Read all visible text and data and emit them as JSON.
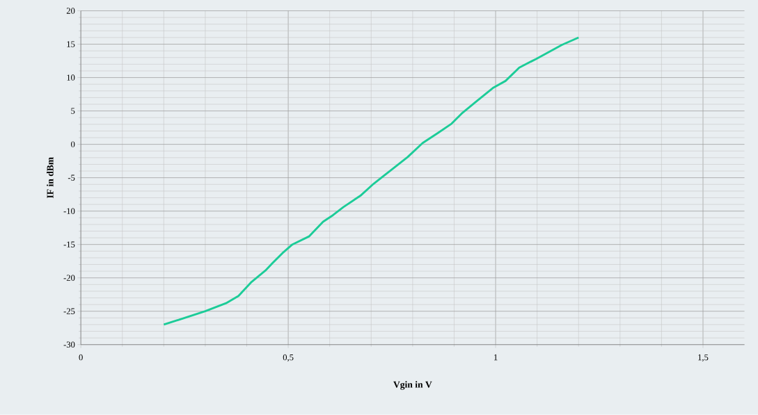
{
  "chart_data": {
    "type": "line",
    "xlabel": "Vgin in V",
    "ylabel": "IF in dBm",
    "xlim": [
      0,
      1.6
    ],
    "ylim": [
      -30,
      20
    ],
    "xticks": [
      0,
      {
        "value": 0.5,
        "label": "0,5"
      },
      1,
      {
        "value": 1.5,
        "label": "1,5"
      }
    ],
    "yticks": [
      -30,
      -25,
      -20,
      -15,
      -10,
      -5,
      0,
      5,
      10,
      15,
      20
    ],
    "grid": true,
    "marker": "none",
    "line_style": "solid",
    "series": [
      {
        "color": "#1ccc98",
        "x": [
          0.2,
          0.25,
          0.3,
          0.35,
          0.38,
          0.41,
          0.445,
          0.462,
          0.486,
          0.51,
          0.55,
          0.584,
          0.608,
          0.633,
          0.674,
          0.706,
          0.747,
          0.788,
          0.824,
          0.861,
          0.894,
          0.918,
          0.951,
          0.995,
          1.024,
          1.057,
          1.098,
          1.16,
          1.2
        ],
        "values": [
          -27,
          -26,
          -25,
          -23.8,
          -22.7,
          -20.7,
          -18.9,
          -17.8,
          -16.3,
          -15,
          -13.8,
          -11.6,
          -10.6,
          -9.4,
          -7.7,
          -5.9,
          -3.9,
          -1.9,
          0.2,
          1.7,
          3.1,
          4.6,
          6.3,
          8.5,
          9.5,
          11.5,
          12.8,
          14.9,
          16
        ]
      }
    ]
  }
}
